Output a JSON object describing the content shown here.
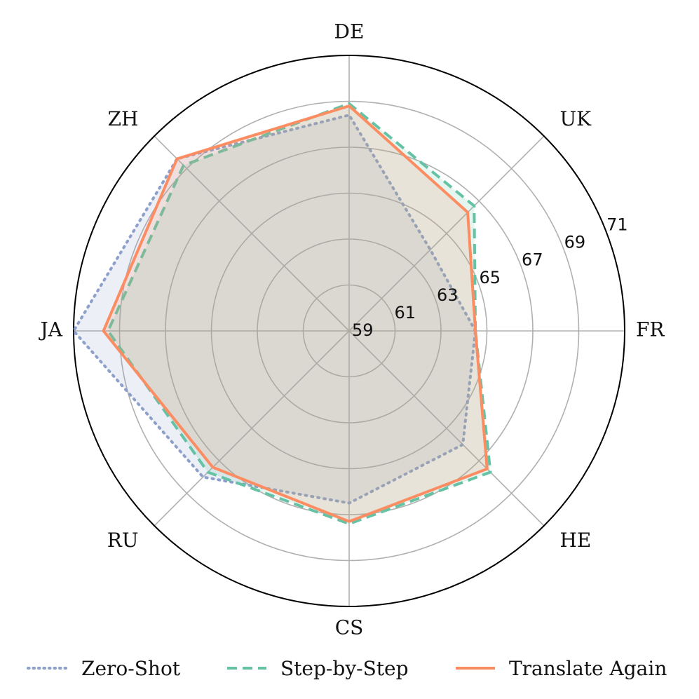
{
  "chart_data": {
    "type": "radar",
    "categories": [
      "FR",
      "UK",
      "DE",
      "ZH",
      "JA",
      "RU",
      "CS",
      "HE"
    ],
    "rlim": [
      59,
      71
    ],
    "r_ticks": [
      "59",
      "61",
      "63",
      "65",
      "67",
      "69",
      "71"
    ],
    "grid": true,
    "legend_placement": "bottom",
    "series": [
      {
        "name": "Zero-Shot",
        "color": "#8da0cb",
        "line_style": "dotted",
        "values": [
          64.5,
          64.0,
          68.4,
          69.6,
          71.0,
          68.0,
          66.5,
          66.0
        ]
      },
      {
        "name": "Step-by-Step",
        "color": "#66c2a5",
        "line_style": "dashed",
        "values": [
          64.5,
          66.7,
          68.9,
          69.2,
          69.5,
          67.7,
          67.4,
          67.7
        ]
      },
      {
        "name": "Translate Again",
        "color": "#fc8d62",
        "line_style": "solid",
        "values": [
          64.5,
          66.3,
          68.8,
          69.6,
          69.7,
          67.4,
          67.3,
          67.5
        ]
      }
    ]
  }
}
